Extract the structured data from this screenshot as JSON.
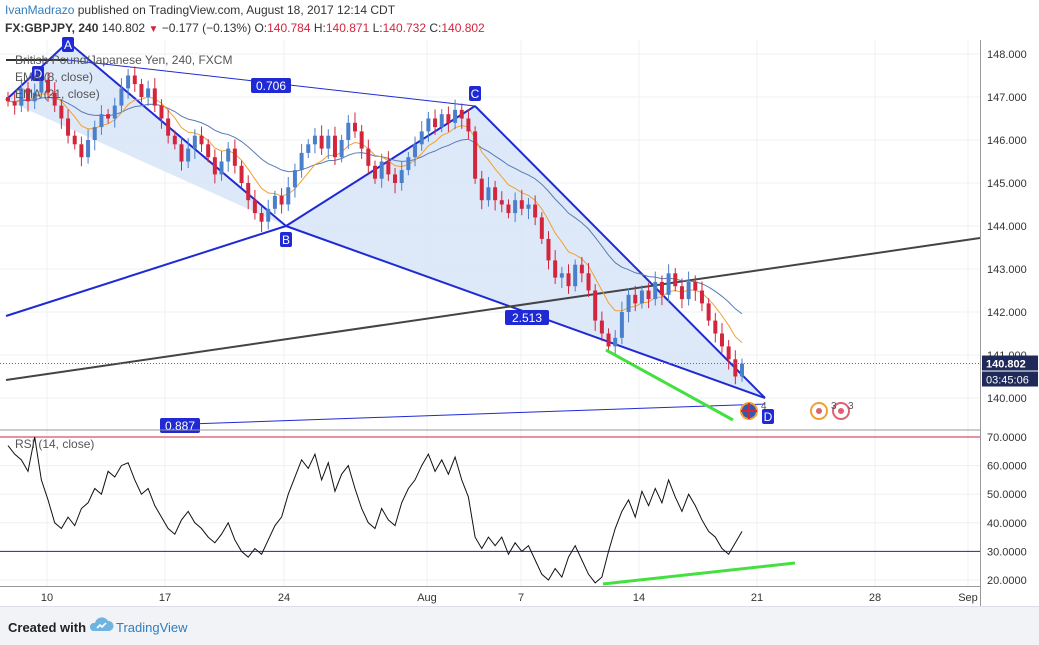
{
  "header": {
    "author": "IvanMadrazo",
    "published": "published on TradingView.com, August 18, 2017 12:14 CDT",
    "symbol": "FX:GBPJPY, 240",
    "last": "140.802",
    "change": "−0.177 (−0.13%)",
    "ohlc": [
      {
        "label": "O:",
        "value": "140.784"
      },
      {
        "label": "H:",
        "value": "140.871"
      },
      {
        "label": "L:",
        "value": "140.732"
      },
      {
        "label": "C:",
        "value": "140.802"
      }
    ]
  },
  "legend": {
    "title": "British Pound/Japanese Yen, 240, FXCM",
    "ema1": "EMA (8, close)",
    "ema2": "EMA (21, close)",
    "rsi": "RSI (14, close)"
  },
  "colors": {
    "candle_up": "#4a7fcb",
    "candle_down": "#d3263d",
    "ema_fast": "#f0a030",
    "ema_slow": "#5a7bb5",
    "pattern_line": "#1f2ad4",
    "pattern_fill": "#d4e3f7",
    "trend_line": "#444444",
    "divergence": "#44e040",
    "rsi_line": "#111111",
    "rsi_upper": "#d3263d",
    "rsi_lower": "#1f2a8a",
    "price_label": "#1f2a5a"
  },
  "price_axis": {
    "ticks": [
      "148.000",
      "147.000",
      "146.000",
      "145.000",
      "144.000",
      "143.000",
      "142.000",
      "141.000",
      "140.000"
    ],
    "last_price": "140.802",
    "countdown": "03:45:06"
  },
  "rsi_axis": {
    "ticks": [
      "70.0000",
      "60.0000",
      "50.0000",
      "40.0000",
      "30.0000",
      "20.0000"
    ]
  },
  "time_axis": {
    "ticks": [
      "10",
      "17",
      "24",
      "Aug",
      "7",
      "14",
      "21",
      "28",
      "Sep"
    ]
  },
  "pattern": {
    "points": {
      "A": "A",
      "B": "B",
      "C": "C",
      "D": "D",
      "X": "D"
    },
    "ratios": {
      "ab": "0.706",
      "bd": "2.513",
      "xd": "0.887"
    }
  },
  "footer": {
    "created": "Created with",
    "brand": "TradingView"
  },
  "chart_data": {
    "type": "candlestick",
    "title": "British Pound/Japanese Yen, 240, FXCM",
    "ylim": [
      139.3,
      148.3
    ],
    "rsi_ylim": [
      17,
      75
    ],
    "x_ticks": [
      "10",
      "17",
      "24",
      "Aug",
      "7",
      "14",
      "21",
      "28",
      "Sep"
    ],
    "closes": [
      146.9,
      146.8,
      147.2,
      146.9,
      147.1,
      147.4,
      147.1,
      146.8,
      146.5,
      146.1,
      145.9,
      145.6,
      146.0,
      146.3,
      146.6,
      146.5,
      146.8,
      147.2,
      147.5,
      147.3,
      147.0,
      147.2,
      146.8,
      146.5,
      146.1,
      145.9,
      145.5,
      145.8,
      146.1,
      145.9,
      145.6,
      145.2,
      145.5,
      145.8,
      145.4,
      145.0,
      144.6,
      144.3,
      144.1,
      144.4,
      144.7,
      144.5,
      144.9,
      145.3,
      145.7,
      145.9,
      146.1,
      145.8,
      146.1,
      145.6,
      146.0,
      146.4,
      146.2,
      145.8,
      145.4,
      145.1,
      145.5,
      145.2,
      145.0,
      145.3,
      145.6,
      145.9,
      146.2,
      146.5,
      146.3,
      146.6,
      146.4,
      146.7,
      146.5,
      146.2,
      145.1,
      144.6,
      144.9,
      144.6,
      144.5,
      144.3,
      144.6,
      144.4,
      144.5,
      144.2,
      143.7,
      143.2,
      142.8,
      142.9,
      142.6,
      143.1,
      142.9,
      142.5,
      141.8,
      141.5,
      141.2,
      141.4,
      142.0,
      142.4,
      142.2,
      142.5,
      142.3,
      142.7,
      142.4,
      142.9,
      142.6,
      142.3,
      142.7,
      142.5,
      142.2,
      141.8,
      141.5,
      141.2,
      140.9,
      140.5,
      140.8
    ],
    "rsi_values": [
      67,
      64,
      62,
      58,
      70,
      55,
      48,
      40,
      38,
      42,
      39,
      45,
      47,
      52,
      50,
      58,
      56,
      60,
      61,
      55,
      50,
      52,
      46,
      42,
      38,
      36,
      41,
      44,
      40,
      38,
      35,
      33,
      36,
      40,
      34,
      30,
      28,
      31,
      29,
      34,
      39,
      42,
      50,
      56,
      62,
      59,
      64,
      55,
      61,
      51,
      57,
      60,
      52,
      45,
      40,
      38,
      45,
      41,
      39,
      47,
      52,
      55,
      60,
      64,
      58,
      62,
      57,
      63,
      55,
      49,
      35,
      31,
      35,
      32,
      35,
      29,
      33,
      30,
      32,
      27,
      22,
      20,
      24,
      21,
      28,
      32,
      27,
      22,
      19,
      21,
      30,
      38,
      44,
      48,
      42,
      51,
      46,
      52,
      47,
      55,
      49,
      44,
      50,
      46,
      41,
      37,
      35,
      31,
      29,
      33,
      37
    ],
    "ema8_offset": 0.15,
    "ema21_offset": 0.45
  }
}
